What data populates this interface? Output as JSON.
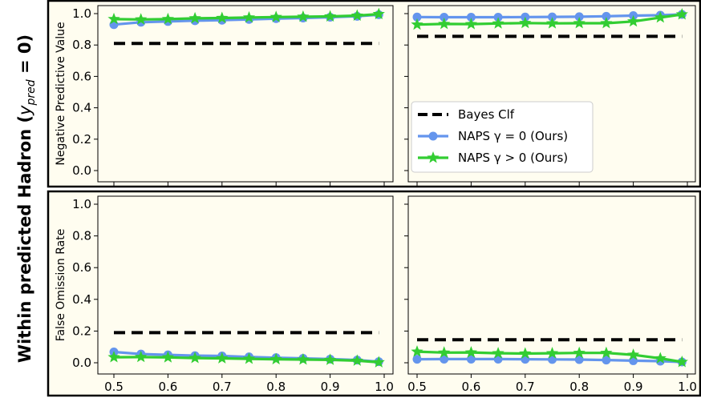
{
  "figure": {
    "side_title": "Within predicted Hadron (",
    "side_title_math": "y",
    "side_title_sub": "pred",
    "side_title_tail": " = 0)"
  },
  "colors": {
    "row_background": "#fffdf0",
    "baseline": "#000000",
    "naps_gamma0": "#6495ed",
    "naps_gamma_pos": "#32cd32"
  },
  "legend": {
    "items": [
      {
        "label": "Bayes Clf",
        "style": "dashed",
        "color": "#000000"
      },
      {
        "label": "NAPS γ = 0 (Ours)",
        "style": "line-circle",
        "color": "#6495ed"
      },
      {
        "label": "NAPS γ > 0 (Ours)",
        "style": "line-star",
        "color": "#32cd32"
      }
    ]
  },
  "chart_data": [
    {
      "type": "line",
      "panel": "top-left",
      "ylabel": "Negative Predictive Value",
      "xlim": [
        0.5,
        1.0
      ],
      "ylim": [
        0.0,
        1.0
      ],
      "yticks": [
        "0.0",
        "0.2",
        "0.4",
        "0.6",
        "0.8",
        "1.0"
      ],
      "x": [
        0.5,
        0.55,
        0.6,
        0.65,
        0.7,
        0.75,
        0.8,
        0.85,
        0.9,
        0.95,
        0.99
      ],
      "series": [
        {
          "name": "Bayes Clf",
          "kind": "hline",
          "y": 0.81
        },
        {
          "name": "NAPS γ = 0 (Ours)",
          "values": [
            0.93,
            0.945,
            0.95,
            0.955,
            0.958,
            0.963,
            0.968,
            0.972,
            0.977,
            0.983,
            0.993
          ]
        },
        {
          "name": "NAPS γ > 0 (Ours)",
          "values": [
            0.965,
            0.963,
            0.965,
            0.97,
            0.972,
            0.975,
            0.978,
            0.98,
            0.982,
            0.987,
            0.997
          ]
        }
      ]
    },
    {
      "type": "line",
      "panel": "top-right",
      "xlim": [
        0.5,
        1.0
      ],
      "ylim": [
        0.0,
        1.0
      ],
      "x": [
        0.5,
        0.55,
        0.6,
        0.65,
        0.7,
        0.75,
        0.8,
        0.85,
        0.9,
        0.95,
        0.99
      ],
      "legend": "lower-left",
      "series": [
        {
          "name": "Bayes Clf",
          "kind": "hline",
          "y": 0.855
        },
        {
          "name": "NAPS γ = 0 (Ours)",
          "values": [
            0.978,
            0.977,
            0.977,
            0.977,
            0.978,
            0.979,
            0.98,
            0.983,
            0.987,
            0.99,
            0.995
          ]
        },
        {
          "name": "NAPS γ > 0 (Ours)",
          "values": [
            0.93,
            0.934,
            0.933,
            0.937,
            0.94,
            0.938,
            0.939,
            0.939,
            0.95,
            0.975,
            0.995
          ]
        }
      ]
    },
    {
      "type": "line",
      "panel": "bottom-left",
      "ylabel": "False Omission Rate",
      "xlim": [
        0.5,
        1.0
      ],
      "ylim": [
        0.0,
        1.0
      ],
      "yticks": [
        "0.0",
        "0.2",
        "0.4",
        "0.6",
        "0.8",
        "1.0"
      ],
      "xticks": [
        "0.5",
        "0.6",
        "0.7",
        "0.8",
        "0.9",
        "1.0"
      ],
      "x": [
        0.5,
        0.55,
        0.6,
        0.65,
        0.7,
        0.75,
        0.8,
        0.85,
        0.9,
        0.95,
        0.99
      ],
      "series": [
        {
          "name": "Bayes Clf",
          "kind": "hline",
          "y": 0.19
        },
        {
          "name": "NAPS γ = 0 (Ours)",
          "values": [
            0.068,
            0.055,
            0.05,
            0.045,
            0.043,
            0.037,
            0.032,
            0.028,
            0.023,
            0.017,
            0.007
          ]
        },
        {
          "name": "NAPS γ > 0 (Ours)",
          "values": [
            0.035,
            0.036,
            0.034,
            0.03,
            0.028,
            0.025,
            0.022,
            0.02,
            0.018,
            0.013,
            0.003
          ]
        }
      ]
    },
    {
      "type": "line",
      "panel": "bottom-right",
      "xlim": [
        0.5,
        1.0
      ],
      "ylim": [
        0.0,
        1.0
      ],
      "xticks": [
        "0.5",
        "0.6",
        "0.7",
        "0.8",
        "0.9",
        "1.0"
      ],
      "x": [
        0.5,
        0.55,
        0.6,
        0.65,
        0.7,
        0.75,
        0.8,
        0.85,
        0.9,
        0.95,
        0.99
      ],
      "series": [
        {
          "name": "Bayes Clf",
          "kind": "hline",
          "y": 0.145
        },
        {
          "name": "NAPS γ = 0 (Ours)",
          "values": [
            0.022,
            0.023,
            0.023,
            0.023,
            0.022,
            0.021,
            0.02,
            0.017,
            0.013,
            0.01,
            0.005
          ]
        },
        {
          "name": "NAPS γ > 0 (Ours)",
          "values": [
            0.07,
            0.064,
            0.065,
            0.06,
            0.058,
            0.06,
            0.062,
            0.062,
            0.05,
            0.028,
            0.005
          ]
        }
      ]
    }
  ]
}
